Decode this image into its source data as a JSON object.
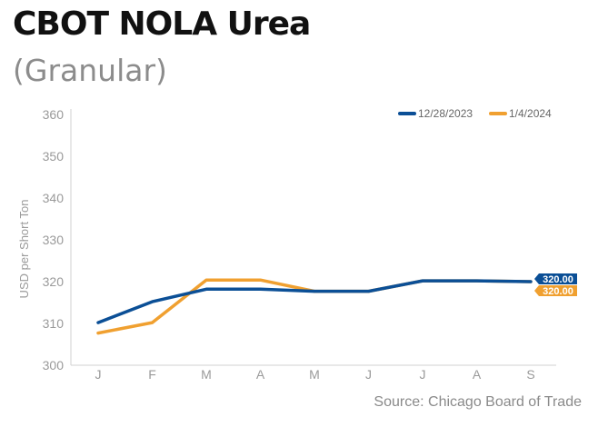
{
  "header": {
    "title": "CBOT NOLA Urea",
    "subtitle": "(Granular)"
  },
  "footer": {
    "source": "Source: Chicago Board of Trade"
  },
  "chart_data": {
    "type": "line",
    "title": "CBOT NOLA Urea",
    "subtitle": "(Granular)",
    "xlabel": "",
    "ylabel": "USD per Short Ton",
    "categories": [
      "J",
      "F",
      "M",
      "A",
      "M",
      "J",
      "J",
      "A",
      "S"
    ],
    "ylim": [
      300,
      360
    ],
    "yticks": [
      300,
      310,
      320,
      330,
      340,
      350,
      360
    ],
    "grid": false,
    "legend_position": "top-right",
    "series": [
      {
        "name": "12/28/2023",
        "color": "#0b4f96",
        "values": [
          310.2,
          315.2,
          318.2,
          318.2,
          317.7,
          317.7,
          320.2,
          320.2,
          320.0
        ],
        "end_label": "320.00"
      },
      {
        "name": "1/4/2024",
        "color": "#f0a030",
        "values": [
          307.7,
          310.2,
          320.4,
          320.4,
          317.7,
          317.7,
          320.2,
          320.2,
          320.0
        ],
        "end_label": "320.00"
      }
    ]
  }
}
